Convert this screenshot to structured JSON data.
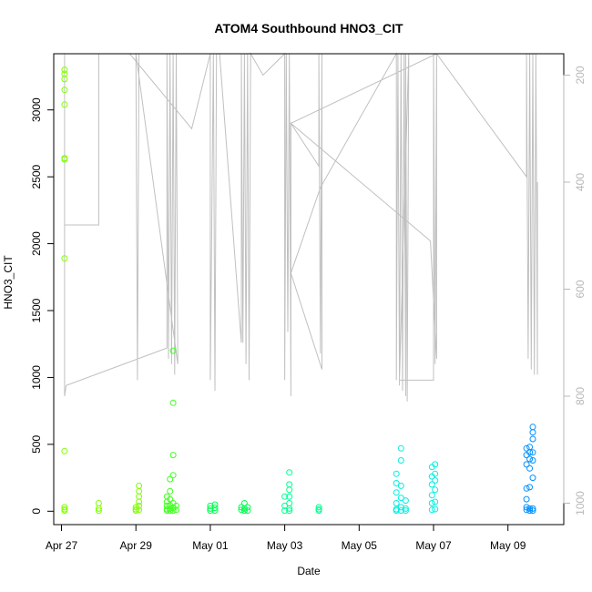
{
  "chart_data": {
    "type": "scatter",
    "title": "ATOM4 Southbound HNO3_CIT",
    "xlabel": "Date",
    "ylabel": "HNO3_CIT",
    "xlim": [
      "2018-04-26T19:00",
      "2018-05-10T12:00"
    ],
    "ylim": [
      -100,
      3420
    ],
    "x_ticks": [
      {
        "date": "2018-04-27",
        "label": "Apr 27"
      },
      {
        "date": "2018-04-29",
        "label": "Apr 29"
      },
      {
        "date": "2018-05-01",
        "label": "May 01"
      },
      {
        "date": "2018-05-03",
        "label": "May 03"
      },
      {
        "date": "2018-05-05",
        "label": "May 05"
      },
      {
        "date": "2018-05-07",
        "label": "May 07"
      },
      {
        "date": "2018-05-09",
        "label": "May 09"
      }
    ],
    "y_ticks": [
      0,
      500,
      1000,
      1500,
      2000,
      2500,
      3000
    ],
    "secondary_axis": {
      "side": "right",
      "color": "#b8b8b8",
      "reversed": true,
      "ylim": [
        1040,
        160
      ],
      "ticks": [
        200,
        400,
        600,
        800,
        1000
      ]
    },
    "grid": false,
    "series": [
      {
        "marker": "open-circle",
        "color": "#80ff00",
        "points": [
          [
            "2018-04-27T02:00",
            3300
          ],
          [
            "2018-04-27T02:00",
            3270
          ],
          [
            "2018-04-27T02:00",
            3230
          ],
          [
            "2018-04-27T02:00",
            3150
          ],
          [
            "2018-04-27T02:00",
            3040
          ],
          [
            "2018-04-27T02:00",
            2640
          ],
          [
            "2018-04-27T02:00",
            2630
          ],
          [
            "2018-04-27T02:00",
            1890
          ],
          [
            "2018-04-27T02:00",
            450
          ],
          [
            "2018-04-27T02:00",
            30
          ],
          [
            "2018-04-27T02:00",
            15
          ],
          [
            "2018-04-27T02:00",
            5
          ],
          [
            "2018-04-28T00:00",
            60
          ],
          [
            "2018-04-28T00:00",
            20
          ],
          [
            "2018-04-28T00:00",
            5
          ],
          [
            "2018-04-29T00:00",
            30
          ],
          [
            "2018-04-29T00:00",
            15
          ],
          [
            "2018-04-29T00:00",
            5
          ],
          [
            "2018-04-29T02:00",
            190
          ],
          [
            "2018-04-29T02:00",
            150
          ],
          [
            "2018-04-29T02:00",
            110
          ],
          [
            "2018-04-29T02:00",
            70
          ],
          [
            "2018-04-29T02:00",
            40
          ],
          [
            "2018-04-29T02:00",
            10
          ]
        ]
      },
      {
        "marker": "open-circle",
        "color": "#40ff20",
        "points": [
          [
            "2018-04-29T20:00",
            110
          ],
          [
            "2018-04-29T20:00",
            70
          ],
          [
            "2018-04-29T20:00",
            40
          ],
          [
            "2018-04-29T20:00",
            15
          ],
          [
            "2018-04-29T20:00",
            5
          ],
          [
            "2018-04-29T22:00",
            240
          ],
          [
            "2018-04-29T22:00",
            150
          ],
          [
            "2018-04-29T22:00",
            90
          ],
          [
            "2018-04-29T22:00",
            45
          ],
          [
            "2018-04-29T22:00",
            20
          ],
          [
            "2018-04-29T22:00",
            5
          ],
          [
            "2018-04-30T00:00",
            1200
          ],
          [
            "2018-04-30T00:00",
            810
          ],
          [
            "2018-04-30T00:00",
            420
          ],
          [
            "2018-04-30T00:00",
            270
          ],
          [
            "2018-04-30T00:00",
            60
          ],
          [
            "2018-04-30T00:00",
            25
          ],
          [
            "2018-04-30T00:00",
            5
          ],
          [
            "2018-04-30T02:00",
            40
          ],
          [
            "2018-04-30T02:00",
            10
          ]
        ]
      },
      {
        "marker": "open-circle",
        "color": "#00ff50",
        "points": [
          [
            "2018-05-01T00:00",
            40
          ],
          [
            "2018-05-01T00:00",
            20
          ],
          [
            "2018-05-01T00:00",
            5
          ],
          [
            "2018-05-01T03:00",
            50
          ],
          [
            "2018-05-01T03:00",
            25
          ],
          [
            "2018-05-01T03:00",
            5
          ],
          [
            "2018-05-01T20:00",
            30
          ],
          [
            "2018-05-01T20:00",
            10
          ],
          [
            "2018-05-01T22:00",
            60
          ],
          [
            "2018-05-01T22:00",
            20
          ],
          [
            "2018-05-01T22:00",
            5
          ],
          [
            "2018-05-02T00:00",
            30
          ],
          [
            "2018-05-02T00:00",
            5
          ]
        ]
      },
      {
        "marker": "open-circle",
        "color": "#00ff90",
        "points": [
          [
            "2018-05-03T00:00",
            110
          ],
          [
            "2018-05-03T00:00",
            40
          ],
          [
            "2018-05-03T00:00",
            5
          ],
          [
            "2018-05-03T03:00",
            290
          ],
          [
            "2018-05-03T03:00",
            200
          ],
          [
            "2018-05-03T03:00",
            160
          ],
          [
            "2018-05-03T03:00",
            110
          ],
          [
            "2018-05-03T03:00",
            60
          ],
          [
            "2018-05-03T03:00",
            20
          ],
          [
            "2018-05-03T03:00",
            5
          ],
          [
            "2018-05-03T22:00",
            30
          ],
          [
            "2018-05-03T22:00",
            15
          ],
          [
            "2018-05-03T22:00",
            5
          ]
        ]
      },
      {
        "marker": "open-circle",
        "color": "#00f0e0",
        "points": [
          [
            "2018-05-06T00:00",
            280
          ],
          [
            "2018-05-06T00:00",
            210
          ],
          [
            "2018-05-06T00:00",
            140
          ],
          [
            "2018-05-06T00:00",
            60
          ],
          [
            "2018-05-06T00:00",
            15
          ],
          [
            "2018-05-06T00:00",
            5
          ],
          [
            "2018-05-06T03:00",
            470
          ],
          [
            "2018-05-06T03:00",
            380
          ],
          [
            "2018-05-06T03:00",
            190
          ],
          [
            "2018-05-06T03:00",
            100
          ],
          [
            "2018-05-06T03:00",
            30
          ],
          [
            "2018-05-06T03:00",
            5
          ],
          [
            "2018-05-06T06:00",
            80
          ],
          [
            "2018-05-06T06:00",
            20
          ],
          [
            "2018-05-06T06:00",
            5
          ],
          [
            "2018-05-06T23:00",
            330
          ],
          [
            "2018-05-06T23:00",
            260
          ],
          [
            "2018-05-06T23:00",
            200
          ],
          [
            "2018-05-06T23:00",
            120
          ],
          [
            "2018-05-06T23:00",
            60
          ],
          [
            "2018-05-06T23:00",
            10
          ],
          [
            "2018-05-07T01:00",
            350
          ],
          [
            "2018-05-07T01:00",
            280
          ],
          [
            "2018-05-07T01:00",
            230
          ],
          [
            "2018-05-07T01:00",
            160
          ],
          [
            "2018-05-07T01:00",
            70
          ],
          [
            "2018-05-07T01:00",
            15
          ]
        ]
      },
      {
        "marker": "open-circle",
        "color": "#0090ff",
        "points": [
          [
            "2018-05-09T12:00",
            470
          ],
          [
            "2018-05-09T12:00",
            420
          ],
          [
            "2018-05-09T12:00",
            350
          ],
          [
            "2018-05-09T12:00",
            170
          ],
          [
            "2018-05-09T12:00",
            90
          ],
          [
            "2018-05-09T12:00",
            30
          ],
          [
            "2018-05-09T12:00",
            10
          ],
          [
            "2018-05-09T14:00",
            480
          ],
          [
            "2018-05-09T14:00",
            440
          ],
          [
            "2018-05-09T14:00",
            390
          ],
          [
            "2018-05-09T14:00",
            320
          ],
          [
            "2018-05-09T14:00",
            180
          ],
          [
            "2018-05-09T14:00",
            20
          ],
          [
            "2018-05-09T14:00",
            5
          ],
          [
            "2018-05-09T16:00",
            630
          ],
          [
            "2018-05-09T16:00",
            590
          ],
          [
            "2018-05-09T16:00",
            540
          ],
          [
            "2018-05-09T16:00",
            440
          ],
          [
            "2018-05-09T16:00",
            380
          ],
          [
            "2018-05-09T16:00",
            250
          ],
          [
            "2018-05-09T16:00",
            20
          ],
          [
            "2018-05-09T16:00",
            5
          ]
        ]
      }
    ],
    "secondary_line": {
      "color": "#c0c0c0",
      "axis": "secondary",
      "points": [
        [
          "2018-04-27T02:00",
          160
        ],
        [
          "2018-04-27T02:00",
          480
        ],
        [
          "2018-04-28T00:00",
          480
        ],
        [
          "2018-04-28T00:00",
          160
        ],
        [
          "2018-04-27T02:00",
          160
        ],
        [
          "2018-04-27T02:00",
          800
        ],
        [
          "2018-04-27T03:00",
          780
        ],
        [
          "2018-04-29T20:00",
          710
        ],
        [
          "2018-04-29T20:00",
          160
        ],
        [
          "2018-04-29T21:00",
          730
        ],
        [
          "2018-04-29T22:00",
          160
        ],
        [
          "2018-04-29T23:00",
          740
        ],
        [
          "2018-04-30T00:00",
          160
        ],
        [
          "2018-04-30T01:00",
          760
        ],
        [
          "2018-04-30T02:00",
          160
        ],
        [
          "2018-04-30T03:00",
          740
        ],
        [
          "2018-04-29T00:00",
          160
        ],
        [
          "2018-04-29T01:00",
          770
        ],
        [
          "2018-04-29T02:00",
          160
        ],
        [
          "2018-04-28T20:00",
          160
        ],
        [
          "2018-04-30T12:00",
          300
        ],
        [
          "2018-05-01T00:00",
          160
        ],
        [
          "2018-05-01T00:00",
          770
        ],
        [
          "2018-05-01T02:00",
          160
        ],
        [
          "2018-05-01T03:00",
          790
        ],
        [
          "2018-05-01T04:00",
          160
        ],
        [
          "2018-05-01T06:00",
          160
        ],
        [
          "2018-05-01T20:00",
          700
        ],
        [
          "2018-05-01T20:00",
          160
        ],
        [
          "2018-05-01T21:00",
          700
        ],
        [
          "2018-05-01T22:00",
          160
        ],
        [
          "2018-05-01T23:00",
          740
        ],
        [
          "2018-05-02T00:00",
          160
        ],
        [
          "2018-05-02T01:00",
          770
        ],
        [
          "2018-05-02T02:00",
          160
        ],
        [
          "2018-05-02T10:00",
          200
        ],
        [
          "2018-05-03T00:00",
          160
        ],
        [
          "2018-05-03T00:00",
          770
        ],
        [
          "2018-05-03T01:00",
          160
        ],
        [
          "2018-05-03T02:00",
          680
        ],
        [
          "2018-05-03T03:00",
          160
        ],
        [
          "2018-05-03T04:00",
          800
        ],
        [
          "2018-05-03T04:00",
          290
        ],
        [
          "2018-05-03T22:00",
          370
        ],
        [
          "2018-05-03T22:00",
          160
        ],
        [
          "2018-05-03T23:00",
          720
        ],
        [
          "2018-05-04T00:00",
          160
        ],
        [
          "2018-05-04T00:00",
          750
        ],
        [
          "2018-05-03T04:00",
          570
        ],
        [
          "2018-05-03T23:00",
          410
        ],
        [
          "2018-05-06T00:00",
          160
        ],
        [
          "2018-05-06T00:00",
          770
        ],
        [
          "2018-05-06T01:00",
          160
        ],
        [
          "2018-05-06T02:00",
          780
        ],
        [
          "2018-05-06T03:00",
          160
        ],
        [
          "2018-05-06T04:00",
          790
        ],
        [
          "2018-05-06T05:00",
          160
        ],
        [
          "2018-05-06T06:00",
          800
        ],
        [
          "2018-05-06T06:00",
          160
        ],
        [
          "2018-05-06T07:00",
          810
        ],
        [
          "2018-05-06T08:00",
          160
        ],
        [
          "2018-05-06T02:00",
          770
        ],
        [
          "2018-05-07T00:00",
          770
        ],
        [
          "2018-05-07T00:00",
          160
        ],
        [
          "2018-05-07T01:00",
          740
        ],
        [
          "2018-05-07T02:00",
          160
        ],
        [
          "2018-05-07T02:00",
          730
        ],
        [
          "2018-05-06T22:00",
          510
        ],
        [
          "2018-05-03T04:00",
          290
        ],
        [
          "2018-05-07T02:00",
          160
        ],
        [
          "2018-05-09T12:00",
          390
        ],
        [
          "2018-05-09T12:00",
          160
        ],
        [
          "2018-05-09T13:00",
          730
        ],
        [
          "2018-05-09T14:00",
          160
        ],
        [
          "2018-05-09T15:00",
          750
        ],
        [
          "2018-05-09T16:00",
          160
        ],
        [
          "2018-05-09T17:00",
          760
        ],
        [
          "2018-05-09T18:00",
          160
        ],
        [
          "2018-05-09T19:00",
          760
        ],
        [
          "2018-05-09T19:00",
          400
        ]
      ]
    }
  }
}
